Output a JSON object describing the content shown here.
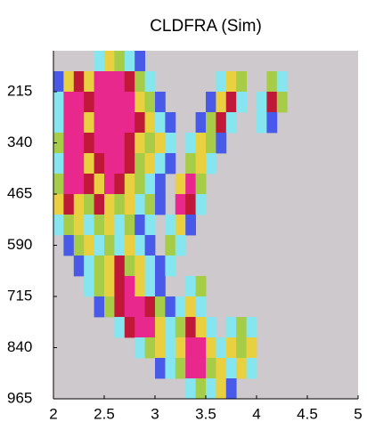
{
  "chart_data": {
    "type": "heatmap",
    "title": "CLDFRA (Sim)",
    "x": [
      2.05,
      2.15,
      2.25,
      2.35,
      2.45,
      2.55,
      2.65,
      2.75,
      2.85,
      2.95,
      3.05,
      3.15,
      3.25,
      3.35,
      3.45,
      3.55,
      3.65,
      3.75,
      3.85,
      3.95,
      4.05,
      4.15,
      4.25,
      4.35,
      4.45,
      4.55,
      4.65,
      4.75,
      4.85,
      4.95
    ],
    "y": [
      140,
      190,
      240,
      290,
      340,
      390,
      440,
      490,
      540,
      590,
      640,
      690,
      740,
      790,
      840,
      890,
      940
    ],
    "z": [
      [
        null,
        null,
        null,
        null,
        0.2,
        0.6,
        0.4,
        0.2,
        0.1,
        null,
        null,
        null,
        null,
        null,
        null,
        null,
        null,
        null,
        null,
        null,
        null,
        null,
        null,
        null,
        null,
        null,
        null,
        null,
        null,
        null
      ],
      [
        0.1,
        0.6,
        0.8,
        0.6,
        1,
        1,
        1,
        0.8,
        0.4,
        0.2,
        null,
        null,
        null,
        null,
        null,
        null,
        0.2,
        0.6,
        0.4,
        null,
        null,
        0.4,
        0.2,
        null,
        null,
        null,
        null,
        null,
        null,
        null
      ],
      [
        0.2,
        1,
        1,
        0.8,
        1,
        1,
        1,
        1,
        0.6,
        0.4,
        0.1,
        null,
        null,
        null,
        null,
        0.1,
        0.6,
        0.8,
        0.2,
        null,
        0.2,
        0.8,
        0.4,
        null,
        null,
        null,
        null,
        null,
        null,
        null
      ],
      [
        0.2,
        1,
        1,
        0.6,
        1,
        1,
        1,
        1,
        0.8,
        0.6,
        0.2,
        0.1,
        null,
        null,
        0.1,
        0.4,
        0.8,
        0.2,
        null,
        null,
        0.2,
        0.1,
        null,
        null,
        null,
        null,
        null,
        null,
        null,
        null
      ],
      [
        0.4,
        1,
        1,
        0.8,
        1,
        1,
        1,
        0.8,
        0.6,
        0.4,
        0.6,
        0.2,
        null,
        0.2,
        0.6,
        0.4,
        0.1,
        null,
        null,
        null,
        null,
        null,
        null,
        null,
        null,
        null,
        null,
        null,
        null,
        null
      ],
      [
        0.2,
        1,
        1,
        0.6,
        0.8,
        1,
        1,
        0.8,
        0.4,
        0.6,
        0.2,
        0.1,
        null,
        0.4,
        0.6,
        0.2,
        null,
        null,
        null,
        null,
        null,
        null,
        null,
        null,
        null,
        null,
        null,
        null,
        null,
        null
      ],
      [
        0.4,
        1,
        1,
        0.8,
        0.6,
        1,
        0.8,
        0.6,
        0.4,
        0.2,
        0.1,
        null,
        0.6,
        1,
        0.4,
        null,
        null,
        null,
        null,
        null,
        null,
        null,
        null,
        null,
        null,
        null,
        null,
        null,
        null,
        null
      ],
      [
        0.6,
        0.8,
        0.6,
        0.4,
        0.8,
        0.6,
        0.4,
        0.6,
        0.2,
        0.4,
        0.1,
        null,
        1,
        0.8,
        0.2,
        null,
        null,
        null,
        null,
        null,
        null,
        null,
        null,
        null,
        null,
        null,
        null,
        null,
        null,
        null
      ],
      [
        0.2,
        0.4,
        0.6,
        0.2,
        0.4,
        0.6,
        0.2,
        0.4,
        0.1,
        0.2,
        null,
        0.2,
        0.6,
        0.1,
        null,
        null,
        null,
        null,
        null,
        null,
        null,
        null,
        null,
        null,
        null,
        null,
        null,
        null,
        null,
        null
      ],
      [
        null,
        0.1,
        0.4,
        0.6,
        0.2,
        0.4,
        0.2,
        0.6,
        0.2,
        0.1,
        null,
        0.4,
        0.2,
        null,
        null,
        null,
        null,
        null,
        null,
        null,
        null,
        null,
        null,
        null,
        null,
        null,
        null,
        null,
        null,
        null
      ],
      [
        null,
        null,
        0.1,
        0.2,
        0.4,
        0.6,
        0.8,
        0.4,
        0.6,
        0.2,
        0.1,
        0.2,
        null,
        null,
        null,
        null,
        null,
        null,
        null,
        null,
        null,
        null,
        null,
        null,
        null,
        null,
        null,
        null,
        null,
        null
      ],
      [
        null,
        null,
        null,
        0.2,
        0.4,
        0.6,
        0.8,
        1,
        0.6,
        0.2,
        0.1,
        null,
        null,
        0.2,
        0.4,
        null,
        null,
        null,
        null,
        null,
        null,
        null,
        null,
        null,
        null,
        null,
        null,
        null,
        null,
        null
      ],
      [
        null,
        null,
        null,
        null,
        0.1,
        0.4,
        0.8,
        1,
        1,
        0.8,
        0.4,
        0.1,
        0.2,
        0.6,
        0.2,
        null,
        null,
        null,
        null,
        null,
        null,
        null,
        null,
        null,
        null,
        null,
        null,
        null,
        null,
        null
      ],
      [
        null,
        null,
        null,
        null,
        null,
        null,
        0.2,
        0.8,
        1,
        1,
        0.6,
        0.2,
        0.4,
        0.8,
        0.6,
        0.2,
        null,
        0.2,
        0.4,
        0.2,
        null,
        null,
        null,
        null,
        null,
        null,
        null,
        null,
        null,
        null
      ],
      [
        null,
        null,
        null,
        null,
        null,
        null,
        null,
        null,
        0.2,
        0.4,
        0.6,
        0.2,
        0.6,
        1,
        1,
        0.6,
        0.2,
        0.6,
        0.4,
        0.6,
        null,
        null,
        null,
        null,
        null,
        null,
        null,
        null,
        null,
        null
      ],
      [
        null,
        null,
        null,
        null,
        null,
        null,
        null,
        null,
        null,
        null,
        0.1,
        0.2,
        0.4,
        1,
        1,
        0.4,
        0.6,
        0.2,
        0.6,
        0.2,
        null,
        null,
        null,
        null,
        null,
        null,
        null,
        null,
        null,
        null
      ],
      [
        null,
        null,
        null,
        null,
        null,
        null,
        null,
        null,
        null,
        null,
        null,
        null,
        null,
        0.2,
        0.4,
        0.2,
        0.6,
        0.1,
        null,
        null,
        null,
        null,
        null,
        null,
        null,
        null,
        null,
        null,
        null,
        null
      ]
    ],
    "colormap": [
      {
        "value": 0.1,
        "color": "#4a5ae8"
      },
      {
        "value": 0.2,
        "color": "#86e6f0"
      },
      {
        "value": 0.4,
        "color": "#a6cc48"
      },
      {
        "value": 0.6,
        "color": "#e8d040"
      },
      {
        "value": 0.8,
        "color": "#c01838"
      },
      {
        "value": 1,
        "color": "#e8288c"
      }
    ],
    "background": "#cdc9cc",
    "xlim": [
      2,
      5
    ],
    "xticks": [
      2,
      2.5,
      3,
      3.5,
      4,
      4.5,
      5
    ],
    "ylim": [
      965,
      115
    ],
    "yticks": [
      215,
      340,
      465,
      590,
      715,
      840,
      965
    ]
  }
}
